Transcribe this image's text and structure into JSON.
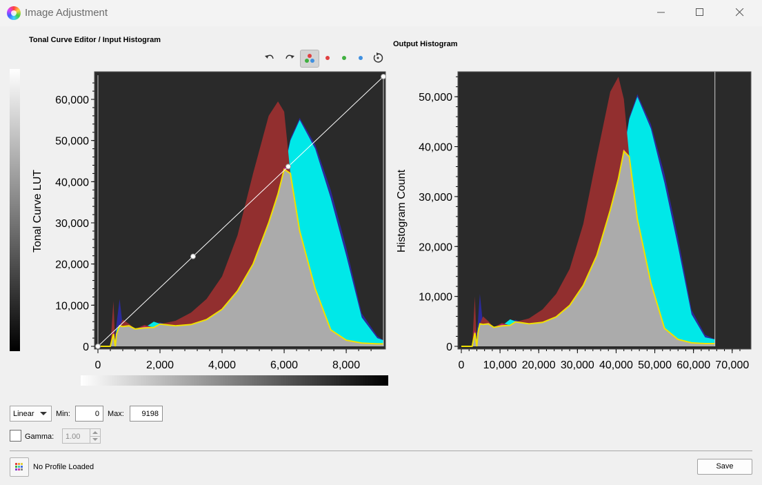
{
  "window": {
    "title": "Image Adjustment"
  },
  "left_panel": {
    "label": "Tonal Curve Editor / Input Histogram"
  },
  "right_panel": {
    "label": "Output Histogram"
  },
  "toolbar": {
    "undo_icon": "undo-icon",
    "redo_icon": "redo-icon",
    "all_channels_icon": "rgb-channels-icon",
    "red_icon": "red-channel-icon",
    "green_icon": "green-channel-icon",
    "blue_icon": "blue-channel-icon",
    "reset_icon": "reset-icon"
  },
  "controls": {
    "mode": "Linear",
    "min_label": "Min:",
    "min_value": "0",
    "max_label": "Max:",
    "max_value": "9198",
    "gamma_label": "Gamma:",
    "gamma_value": "1.00",
    "gamma_enabled": false
  },
  "footer": {
    "profile_status": "No Profile Loaded",
    "save_label": "Save"
  },
  "chart_data": [
    {
      "type": "line",
      "title": "",
      "xlabel": "",
      "ylabel": "Tonal Curve LUT",
      "xlim": [
        0,
        9198
      ],
      "ylim": [
        0,
        65535
      ],
      "xticks": [
        "0",
        "2,000",
        "4,000",
        "6,000",
        "8,000"
      ],
      "yticks": [
        "0",
        "10,000",
        "20,000",
        "30,000",
        "40,000",
        "50,000",
        "60,000"
      ],
      "curve_points": [
        [
          0,
          0
        ],
        [
          3066,
          21845
        ],
        [
          6132,
          43690
        ],
        [
          9198,
          65535
        ]
      ],
      "histogram": {
        "x": [
          0,
          400,
          500,
          560,
          600,
          700,
          800,
          1000,
          1200,
          1500,
          1800,
          2000,
          2500,
          3000,
          3500,
          4000,
          4500,
          5000,
          5500,
          5800,
          6000,
          6200,
          6500,
          7000,
          7500,
          8000,
          8500,
          9000,
          9198
        ],
        "red": [
          0,
          0,
          11000,
          0,
          3000,
          5000,
          6500,
          5500,
          4200,
          5200,
          4600,
          5400,
          6200,
          8200,
          11500,
          17000,
          27000,
          42000,
          56000,
          59500,
          57000,
          42000,
          28000,
          14000,
          4000,
          1500,
          800,
          600,
          600
        ],
        "green": [
          0,
          0,
          3000,
          1500,
          4000,
          5000,
          4800,
          5000,
          4200,
          4500,
          6000,
          5500,
          5000,
          5300,
          6500,
          9000,
          13500,
          20000,
          30000,
          37000,
          43000,
          50000,
          55000,
          48000,
          36000,
          22000,
          7000,
          2000,
          1500
        ],
        "blue": [
          0,
          0,
          3500,
          3000,
          5500,
          11500,
          4800,
          5200,
          4300,
          4800,
          5600,
          5800,
          5000,
          5400,
          6500,
          9000,
          13500,
          20000,
          30000,
          37500,
          43500,
          50500,
          55500,
          49000,
          38000,
          24000,
          8000,
          2500,
          1500
        ]
      }
    },
    {
      "type": "area",
      "title": "",
      "xlabel": "",
      "ylabel": "Histogram Count",
      "xlim": [
        0,
        72000
      ],
      "ylim": [
        0,
        55000
      ],
      "xticks": [
        "0",
        "10,000",
        "20,000",
        "30,000",
        "40,000",
        "50,000",
        "60,000",
        "70,000"
      ],
      "yticks": [
        "0",
        "10,000",
        "20,000",
        "30,000",
        "40,000",
        "50,000"
      ],
      "histogram": {
        "x": [
          0,
          2800,
          3500,
          4000,
          4300,
          4800,
          5600,
          7000,
          8400,
          10500,
          12600,
          14000,
          17500,
          21000,
          24500,
          28000,
          31500,
          35000,
          38500,
          40600,
          42000,
          43400,
          45500,
          49000,
          52500,
          56000,
          59500,
          63000,
          65535
        ],
        "red": [
          0,
          0,
          10000,
          0,
          2700,
          4500,
          6000,
          5000,
          3800,
          4700,
          4200,
          4900,
          5600,
          7400,
          10500,
          15500,
          24500,
          38000,
          51000,
          54000,
          49500,
          38000,
          25500,
          12700,
          3600,
          1400,
          700,
          550,
          550
        ],
        "green": [
          0,
          0,
          2700,
          1400,
          3600,
          4500,
          4400,
          4500,
          3800,
          4100,
          5400,
          5000,
          4500,
          4800,
          5900,
          8200,
          12200,
          18200,
          27300,
          33600,
          39100,
          45500,
          50000,
          43600,
          32700,
          20000,
          6400,
          1800,
          1400
        ],
        "blue": [
          0,
          0,
          3200,
          2700,
          5000,
          10500,
          4400,
          4700,
          3900,
          4400,
          5100,
          5300,
          4500,
          4900,
          5900,
          8200,
          12200,
          18200,
          27300,
          34100,
          39500,
          45900,
          50500,
          44500,
          34500,
          21800,
          7300,
          2300,
          1400
        ]
      }
    }
  ]
}
